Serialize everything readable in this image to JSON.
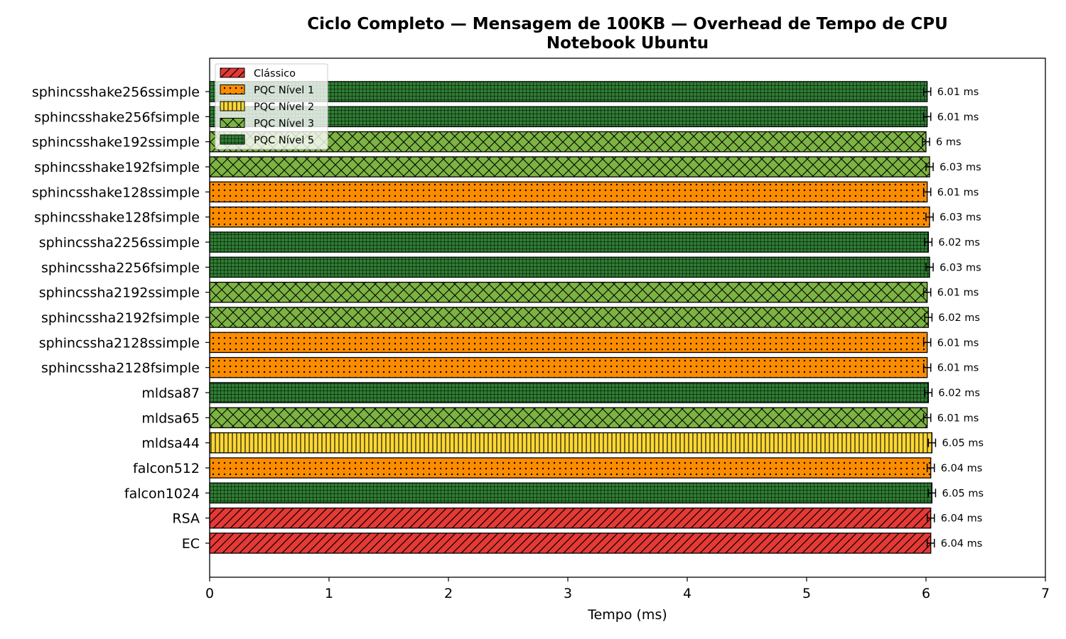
{
  "chart_data": {
    "type": "bar",
    "orientation": "horizontal",
    "title": "Ciclo Completo — Mensagem de 100KB — Overhead de Tempo de CPU",
    "subtitle": "Notebook Ubuntu",
    "xlabel": "Tempo (ms)",
    "ylabel": "",
    "xlim": [
      0,
      7
    ],
    "xticks": [
      0,
      1,
      2,
      3,
      4,
      5,
      6,
      7
    ],
    "grid": false,
    "legend_position": "top-left",
    "categories": [
      "sphincsshake256ssimple",
      "sphincsshake256fsimple",
      "sphincsshake192ssimple",
      "sphincsshake192fsimple",
      "sphincsshake128ssimple",
      "sphincsshake128fsimple",
      "sphincssha2256ssimple",
      "sphincssha2256fsimple",
      "sphincssha2192ssimple",
      "sphincssha2192fsimple",
      "sphincssha2128ssimple",
      "sphincssha2128fsimple",
      "mldsa87",
      "mldsa65",
      "mldsa44",
      "falcon512",
      "falcon1024",
      "RSA",
      "EC"
    ],
    "values": [
      6.01,
      6.01,
      6.0,
      6.03,
      6.01,
      6.03,
      6.02,
      6.03,
      6.01,
      6.02,
      6.01,
      6.01,
      6.02,
      6.01,
      6.05,
      6.04,
      6.05,
      6.04,
      6.04
    ],
    "errors": [
      0.03,
      0.03,
      0.03,
      0.03,
      0.03,
      0.03,
      0.03,
      0.03,
      0.03,
      0.03,
      0.03,
      0.03,
      0.03,
      0.03,
      0.03,
      0.03,
      0.03,
      0.03,
      0.03
    ],
    "value_labels": [
      "6.01 ms",
      "6.01 ms",
      "6 ms",
      "6.03 ms",
      "6.01 ms",
      "6.03 ms",
      "6.02 ms",
      "6.03 ms",
      "6.01 ms",
      "6.02 ms",
      "6.01 ms",
      "6.01 ms",
      "6.02 ms",
      "6.01 ms",
      "6.05 ms",
      "6.04 ms",
      "6.05 ms",
      "6.04 ms",
      "6.04 ms"
    ],
    "bar_groups": [
      "PQC Nível 5",
      "PQC Nível 5",
      "PQC Nível 3",
      "PQC Nível 3",
      "PQC Nível 1",
      "PQC Nível 1",
      "PQC Nível 5",
      "PQC Nível 5",
      "PQC Nível 3",
      "PQC Nível 3",
      "PQC Nível 1",
      "PQC Nível 1",
      "PQC Nível 5",
      "PQC Nível 3",
      "PQC Nível 2",
      "PQC Nível 1",
      "PQC Nível 5",
      "Clássico",
      "Clássico"
    ],
    "groups": [
      {
        "name": "Clássico",
        "color": "#e53935",
        "hatch": "diagonal"
      },
      {
        "name": "PQC Nível 1",
        "color": "#fb8c00",
        "hatch": "dots"
      },
      {
        "name": "PQC Nível 2",
        "color": "#fdd835",
        "hatch": "vertical"
      },
      {
        "name": "PQC Nível 3",
        "color": "#7cb342",
        "hatch": "crosshatch"
      },
      {
        "name": "PQC Nível 5",
        "color": "#2e7d32",
        "hatch": "grid"
      }
    ]
  }
}
